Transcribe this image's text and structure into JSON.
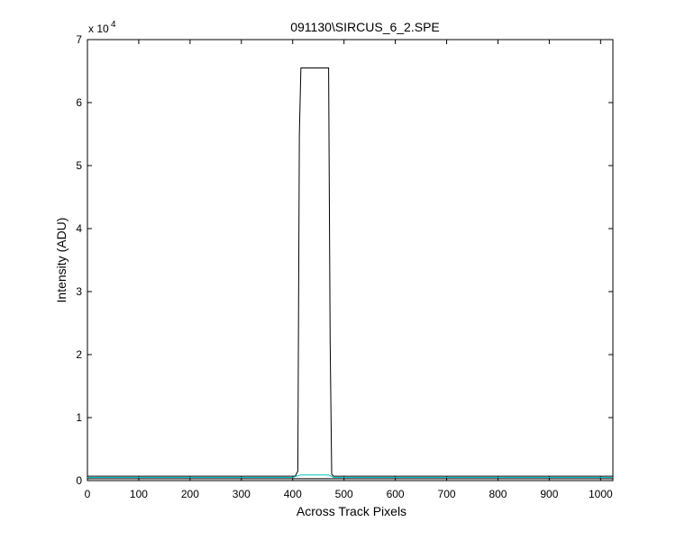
{
  "chart_data": {
    "type": "line",
    "title": "091130\\SIRCUS_6_2.SPE",
    "x_label": "Across Track Pixels",
    "y_label": "Intensity (ADU)",
    "y_multiplier": "x 10",
    "y_multiplier_exponent": "4",
    "xlim": [
      0,
      1024
    ],
    "ylim": [
      0,
      70000
    ],
    "xticks": [
      0,
      100,
      200,
      300,
      400,
      500,
      600,
      700,
      800,
      900,
      1000
    ],
    "yticks": [
      {
        "value": 0,
        "label": "0"
      },
      {
        "value": 10000,
        "label": "1"
      },
      {
        "value": 20000,
        "label": "2"
      },
      {
        "value": 30000,
        "label": "3"
      },
      {
        "value": 40000,
        "label": "4"
      },
      {
        "value": 50000,
        "label": "5"
      },
      {
        "value": 60000,
        "label": "6"
      },
      {
        "value": 70000,
        "label": "7"
      }
    ],
    "series": [
      {
        "color": "#000000",
        "x": [
          0,
          405,
          410,
          413,
          416,
          470,
          473,
          476,
          480,
          1024
        ],
        "values": [
          700,
          700,
          1500,
          55000,
          65500,
          65500,
          22000,
          1000,
          700,
          700
        ]
      },
      {
        "color": "#000000",
        "x": [
          0,
          1024
        ],
        "values": [
          300,
          300
        ]
      },
      {
        "color": "#00c0c0",
        "x": [
          0,
          400,
          415,
          470,
          480,
          1024
        ],
        "values": [
          500,
          500,
          900,
          900,
          500,
          500
        ]
      }
    ]
  }
}
